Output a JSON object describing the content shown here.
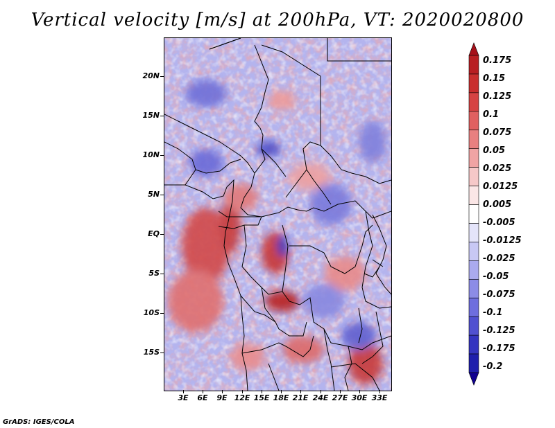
{
  "title": "Vertical velocity [m/s] at 200hPa, VT: 2020020800",
  "map": {
    "variable": "Vertical velocity",
    "units": "m/s",
    "level": "200hPa",
    "valid_time": "2020020800",
    "lat_labels": [
      "20N",
      "15N",
      "10N",
      "5N",
      "EQ",
      "5S",
      "10S",
      "15S"
    ],
    "lon_labels": [
      "3E",
      "6E",
      "9E",
      "12E",
      "15E",
      "18E",
      "21E",
      "24E",
      "27E",
      "30E",
      "33E"
    ]
  },
  "colorbar": {
    "labels": [
      "0.175",
      "0.15",
      "0.125",
      "0.1",
      "0.075",
      "0.05",
      "0.025",
      "0.0125",
      "0.005",
      "-0.005",
      "-0.0125",
      "-0.025",
      "-0.05",
      "-0.075",
      "-0.1",
      "-0.125",
      "-0.175",
      "-0.2"
    ],
    "colors": [
      "#a6101a",
      "#b81e22",
      "#c92e2e",
      "#d64343",
      "#e06060",
      "#e88080",
      "#f0a4a4",
      "#f6c8c8",
      "#fbe6e6",
      "#ffffff",
      "#e4e4fa",
      "#c8c8f4",
      "#aaaaee",
      "#8c8ce6",
      "#6e6ede",
      "#5050d0",
      "#3434c0",
      "#1e1eac",
      "#100090"
    ]
  },
  "footer": "GrADS: IGES/COLA"
}
